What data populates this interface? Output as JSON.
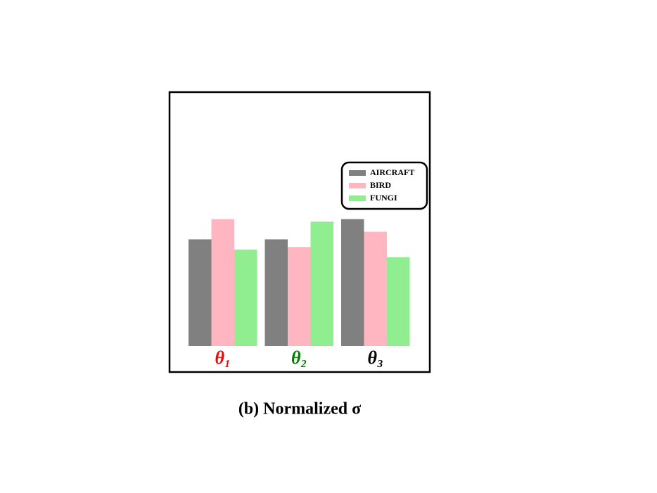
{
  "chart_data": {
    "type": "bar",
    "title": "(b) Normalized σ",
    "categories": [
      "θ₁",
      "θ₂",
      "θ₃"
    ],
    "category_colors": [
      "#ff0000",
      "#008000",
      "#000000"
    ],
    "series": [
      {
        "name": "AIRCRAFT",
        "color": "#808080",
        "values": [
          0.42,
          0.42,
          0.5
        ]
      },
      {
        "name": "BIRD",
        "color": "#ffb6c1",
        "values": [
          0.5,
          0.39,
          0.45
        ]
      },
      {
        "name": "FUNGI",
        "color": "#90ee90",
        "values": [
          0.38,
          0.49,
          0.35
        ]
      }
    ],
    "ylim": [
      0,
      1
    ],
    "legend": "upper right"
  }
}
